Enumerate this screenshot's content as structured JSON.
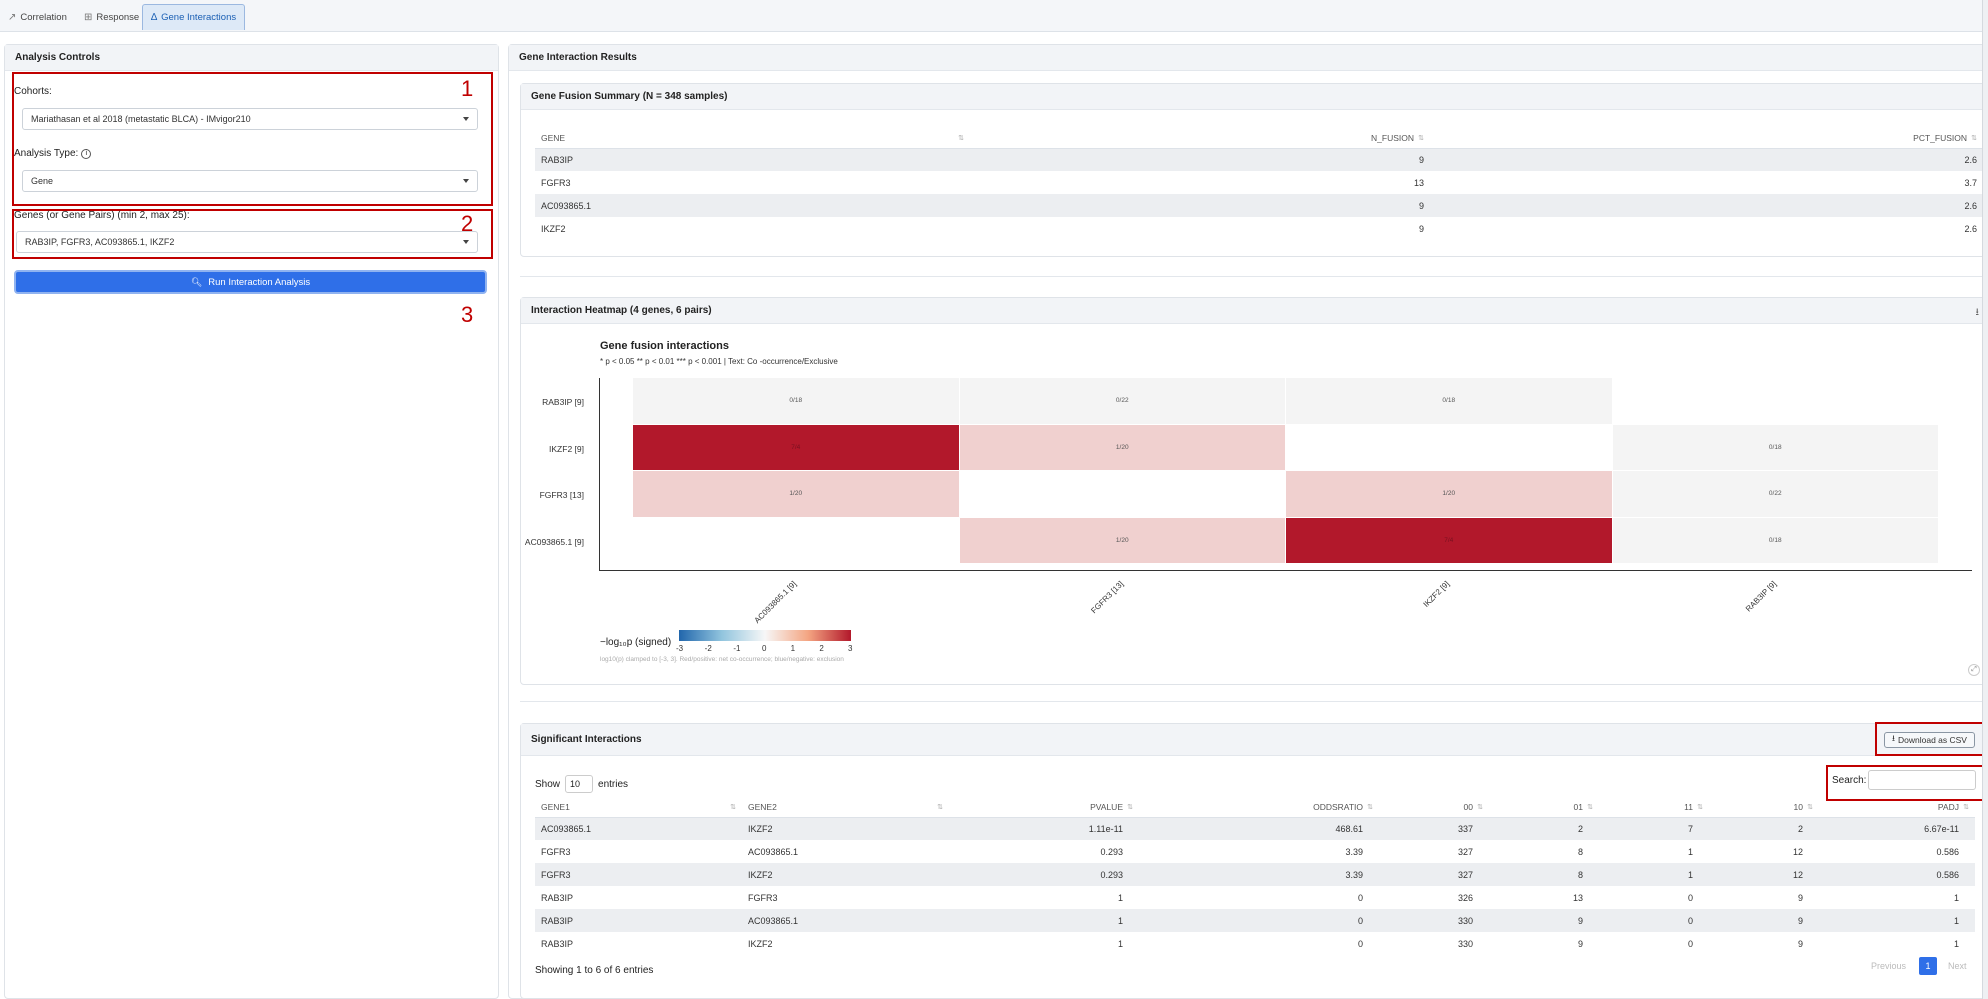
{
  "tabs": [
    {
      "label": "Correlation",
      "icon": "line-chart-icon"
    },
    {
      "label": "Response",
      "icon": "table-icon"
    },
    {
      "label": "Gene Interactions",
      "icon": "network-icon"
    }
  ],
  "controls": {
    "title": "Analysis Controls",
    "cohorts_label": "Cohorts:",
    "cohort_value": "Mariathasan et al 2018 (metastatic BLCA) - IMvigor210",
    "analysis_type_label": "Analysis Type:",
    "analysis_type_value": "Gene",
    "genes_label": "Genes (or Gene Pairs) (min 2, max 25):",
    "genes_value": "RAB3IP, FGFR3, AC093865.1, IKZF2",
    "run_button": "Run Interaction Analysis",
    "markers": [
      "1",
      "2",
      "3"
    ]
  },
  "results": {
    "title": "Gene Interaction Results"
  },
  "fusion_summary": {
    "title": "Gene Fusion Summary (N = 348 samples)",
    "columns": [
      "GENE",
      "N_FUSION",
      "PCT_FUSION"
    ],
    "rows": [
      [
        "RAB3IP",
        "9",
        "2.6"
      ],
      [
        "FGFR3",
        "13",
        "3.7"
      ],
      [
        "AC093865.1",
        "9",
        "2.6"
      ],
      [
        "IKZF2",
        "9",
        "2.6"
      ]
    ]
  },
  "heatmap": {
    "panel_title": "Interaction Heatmap (4 genes, 6 pairs)",
    "chart_title": "Gene fusion interactions",
    "subtitle": "* p < 0.05  ** p < 0.01  *** p < 0.001  |  Text: Co -occurrence/Exclusive",
    "y_labels": [
      "RAB3IP [9]",
      "IKZF2 [9]",
      "FGFR3 [13]",
      "AC093865.1 [9]"
    ],
    "x_labels": [
      "AC093865.1 [9]",
      "FGFR3 [13]",
      "IKZF2 [9]",
      "RAB3IP [9]"
    ],
    "legend_title": "−log₁₀p (signed)",
    "legend_ticks": [
      "-3",
      "-2",
      "-1",
      "0",
      "1",
      "2",
      "3"
    ],
    "legend_note": "log10(p) clamped to [-3, 3]. Red/positive: net co-occurrence; blue/negative: exclusion",
    "colors": {
      "strong": "#b2182b",
      "light": "#f0d0cf",
      "neutral": "#f4f4f4"
    }
  },
  "chart_data": {
    "type": "heatmap",
    "title": "Gene fusion interactions",
    "x": [
      "AC093865.1 [9]",
      "FGFR3 [13]",
      "IKZF2 [9]",
      "RAB3IP [9]"
    ],
    "y": [
      "RAB3IP [9]",
      "IKZF2 [9]",
      "FGFR3 [13]",
      "AC093865.1 [9]"
    ],
    "cells": [
      {
        "row": 0,
        "col": 0,
        "text": "0/18",
        "value": 0
      },
      {
        "row": 0,
        "col": 1,
        "text": "0/22",
        "value": 0
      },
      {
        "row": 0,
        "col": 2,
        "text": "0/18",
        "value": 0
      },
      {
        "row": 1,
        "col": 0,
        "text": "7/4",
        "value": 3
      },
      {
        "row": 1,
        "col": 1,
        "text": "1/20",
        "value": 0.5
      },
      {
        "row": 1,
        "col": 3,
        "text": "0/18",
        "value": 0
      },
      {
        "row": 2,
        "col": 0,
        "text": "1/20",
        "value": 0.5
      },
      {
        "row": 2,
        "col": 2,
        "text": "1/20",
        "value": 0.5
      },
      {
        "row": 2,
        "col": 3,
        "text": "0/22",
        "value": 0
      },
      {
        "row": 3,
        "col": 1,
        "text": "1/20",
        "value": 0.5
      },
      {
        "row": 3,
        "col": 2,
        "text": "7/4",
        "value": 3
      },
      {
        "row": 3,
        "col": 3,
        "text": "0/18",
        "value": 0
      }
    ],
    "color_range": [
      -3,
      3
    ]
  },
  "significant": {
    "title": "Significant Interactions",
    "download_label": "Download as CSV",
    "show_label": "Show",
    "show_value": "10",
    "entries_label": "entries",
    "search_label": "Search:",
    "columns": [
      "GENE1",
      "GENE2",
      "PVALUE",
      "ODDSRATIO",
      "00",
      "01",
      "11",
      "10",
      "PADJ"
    ],
    "rows": [
      [
        "AC093865.1",
        "IKZF2",
        "1.11e-11",
        "468.61",
        "337",
        "2",
        "7",
        "2",
        "6.67e-11"
      ],
      [
        "FGFR3",
        "AC093865.1",
        "0.293",
        "3.39",
        "327",
        "8",
        "1",
        "12",
        "0.586"
      ],
      [
        "FGFR3",
        "IKZF2",
        "0.293",
        "3.39",
        "327",
        "8",
        "1",
        "12",
        "0.586"
      ],
      [
        "RAB3IP",
        "FGFR3",
        "1",
        "0",
        "326",
        "13",
        "0",
        "9",
        "1"
      ],
      [
        "RAB3IP",
        "AC093865.1",
        "1",
        "0",
        "330",
        "9",
        "0",
        "9",
        "1"
      ],
      [
        "RAB3IP",
        "IKZF2",
        "1",
        "0",
        "330",
        "9",
        "0",
        "9",
        "1"
      ]
    ],
    "info": "Showing 1 to 6 of 6 entries",
    "prev": "Previous",
    "page": "1",
    "next": "Next"
  }
}
